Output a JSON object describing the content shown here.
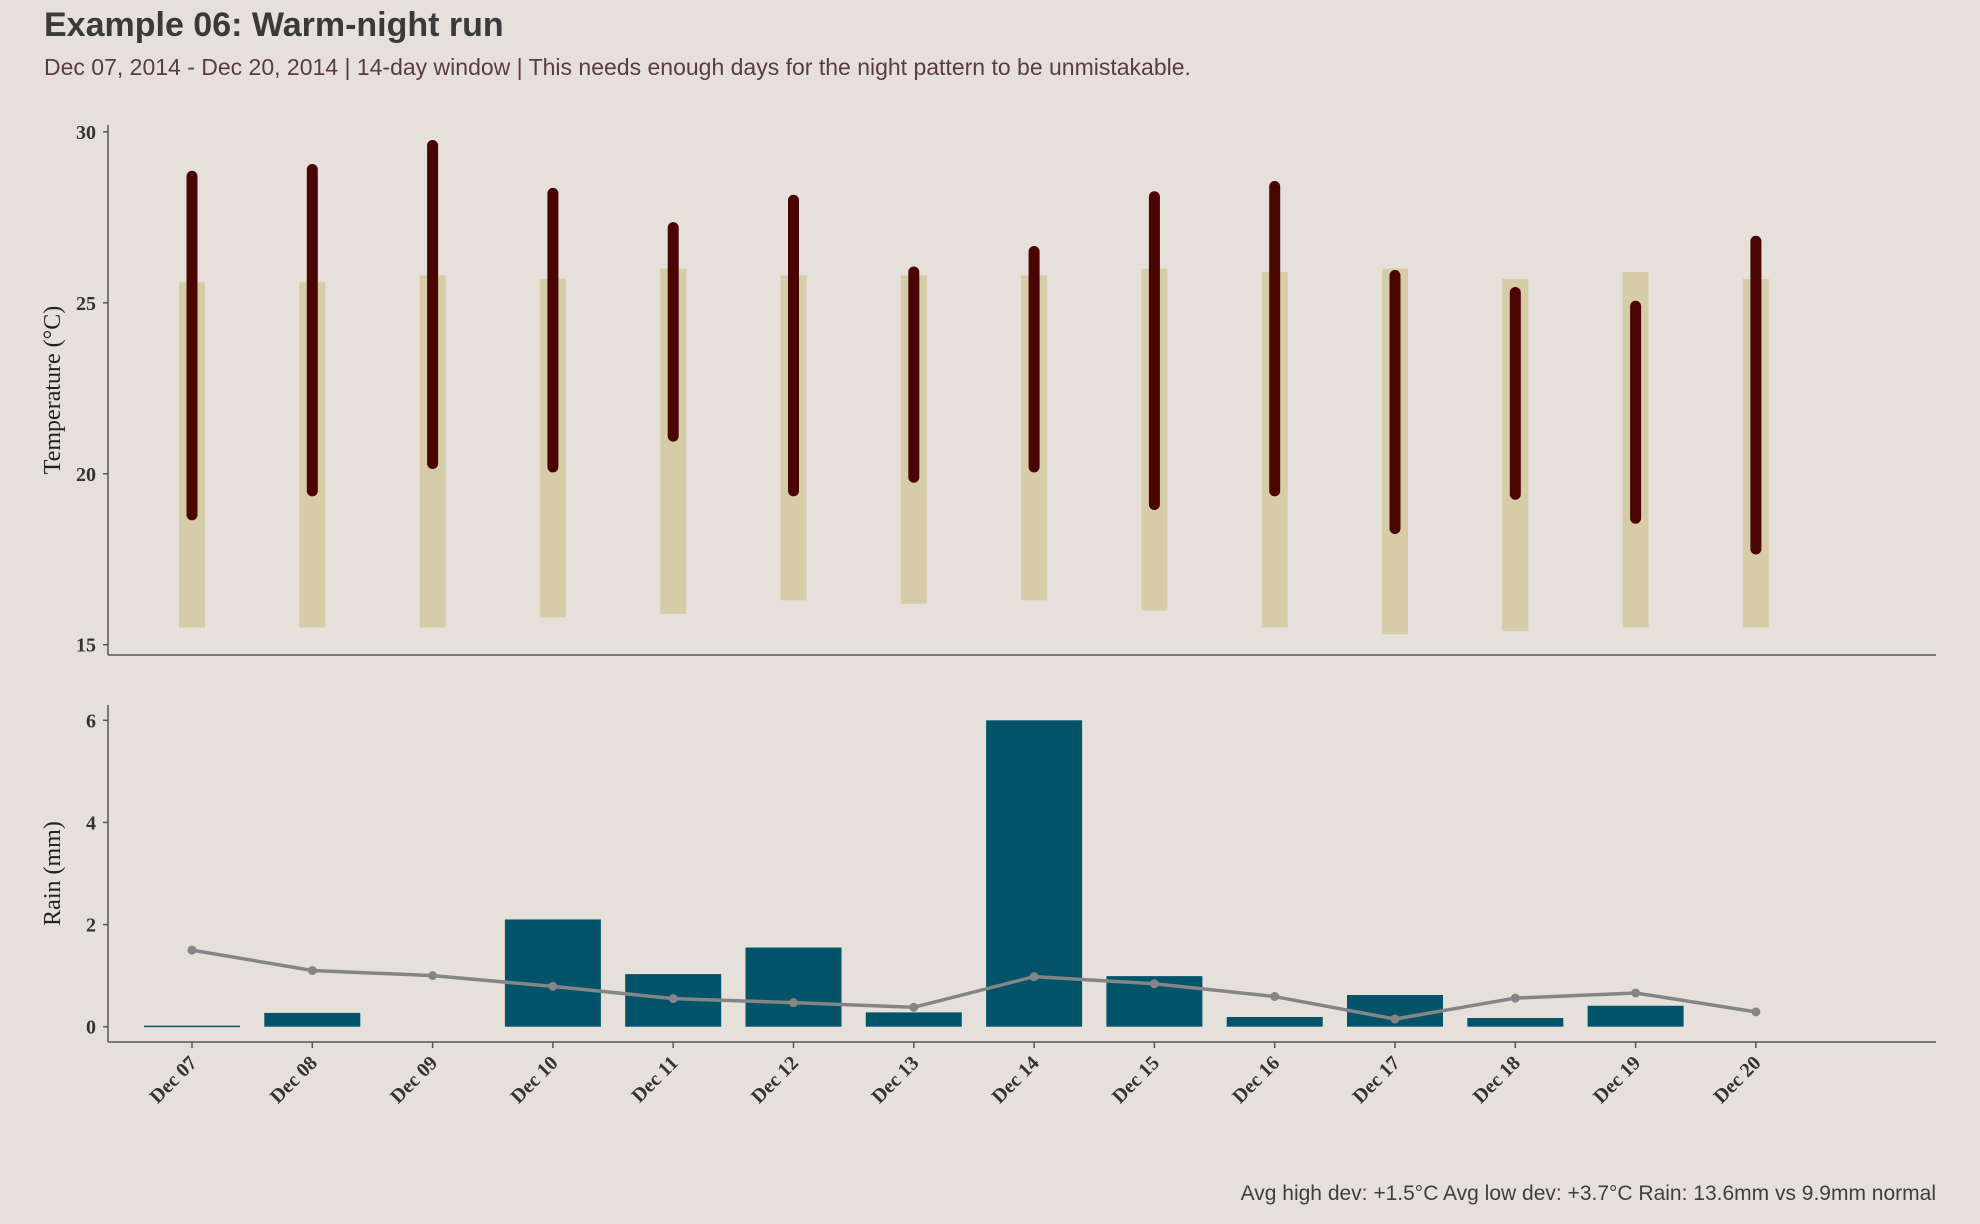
{
  "header": {
    "title": "Example 06: Warm-night run",
    "subtitle": "Dec 07, 2014 - Dec 20, 2014  |  14-day window  |  This needs enough days for the night pattern to be unmistakable."
  },
  "footer": {
    "summary": "Avg high dev: +1.5°C   Avg low dev: +3.7°C   Rain: 13.6mm vs 9.9mm normal"
  },
  "colors": {
    "background": "#e5e1da",
    "normal_band": "#d6cca8",
    "actual_range": "#4a0404",
    "rain_bar": "#03536a",
    "normal_rain_line": "#858585",
    "axis": "#555555"
  },
  "chart_data": [
    {
      "type": "bar",
      "subtype": "range",
      "ylabel": "Temperature (°C)",
      "ylim": [
        14.7,
        30.2
      ],
      "yticks": [
        15,
        20,
        25,
        30
      ],
      "categories": [
        "Dec 07",
        "Dec 08",
        "Dec 09",
        "Dec 10",
        "Dec 11",
        "Dec 12",
        "Dec 13",
        "Dec 14",
        "Dec 15",
        "Dec 16",
        "Dec 17",
        "Dec 18",
        "Dec 19",
        "Dec 20"
      ],
      "series": [
        {
          "low": [
            15.5,
            15.5,
            15.5,
            15.8,
            15.9,
            16.3,
            16.2,
            16.3,
            16.0,
            15.5,
            15.3,
            15.4,
            15.5,
            15.5
          ],
          "high": [
            25.6,
            25.6,
            25.8,
            25.7,
            26.0,
            25.8,
            25.8,
            25.8,
            26.0,
            25.9,
            26.0,
            25.7,
            25.9,
            25.7
          ]
        },
        {
          "low": [
            18.8,
            19.5,
            20.3,
            20.2,
            21.1,
            19.5,
            19.9,
            20.2,
            19.1,
            19.5,
            18.4,
            19.4,
            18.7,
            17.8
          ],
          "high": [
            28.7,
            28.9,
            29.6,
            28.2,
            27.2,
            28.0,
            25.9,
            26.5,
            28.1,
            28.4,
            25.8,
            25.3,
            24.9,
            26.8
          ]
        }
      ]
    },
    {
      "type": "bar",
      "ylabel": "Rain (mm)",
      "ylim": [
        -0.3,
        6.3
      ],
      "yticks": [
        0,
        2,
        4,
        6
      ],
      "categories": [
        "Dec 07",
        "Dec 08",
        "Dec 09",
        "Dec 10",
        "Dec 11",
        "Dec 12",
        "Dec 13",
        "Dec 14",
        "Dec 15",
        "Dec 16",
        "Dec 17",
        "Dec 18",
        "Dec 19",
        "Dec 20"
      ],
      "series": [
        {
          "values": [
            0.02,
            0.27,
            0,
            2.1,
            1.03,
            1.55,
            0.28,
            6.0,
            0.99,
            0.19,
            0.62,
            0.17,
            0.41,
            0
          ]
        },
        {
          "type": "line",
          "values": [
            1.5,
            1.1,
            1.0,
            0.79,
            0.55,
            0.47,
            0.38,
            0.98,
            0.84,
            0.59,
            0.15,
            0.56,
            0.66,
            0.29
          ]
        }
      ]
    }
  ]
}
